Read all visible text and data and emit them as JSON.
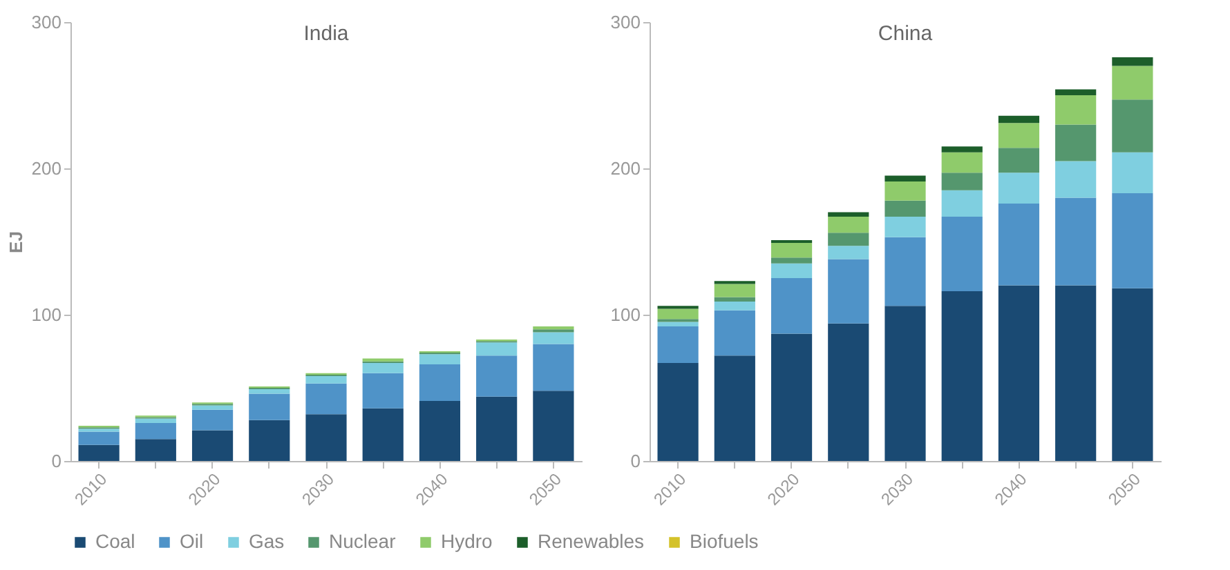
{
  "chart_data": [
    {
      "type": "bar",
      "stacked": true,
      "title": "India",
      "ylabel": "EJ",
      "categories": [
        "2010",
        null,
        "2020",
        null,
        "2030",
        null,
        "2040",
        null,
        "2050"
      ],
      "ylim": [
        0,
        300
      ],
      "yticks": [
        0,
        100,
        200,
        300
      ],
      "grid": false,
      "legend": "bottom",
      "series": [
        {
          "name": "Coal",
          "color": "#1a4a73",
          "values": [
            11,
            15,
            21,
            28,
            32,
            36,
            41,
            44,
            48
          ]
        },
        {
          "name": "Oil",
          "color": "#4f93c8",
          "values": [
            9,
            11,
            14,
            18,
            21,
            24,
            25,
            28,
            32
          ]
        },
        {
          "name": "Gas",
          "color": "#7fcfe0",
          "values": [
            2,
            3,
            3,
            3,
            5,
            7,
            7,
            9,
            8
          ]
        },
        {
          "name": "Nuclear",
          "color": "#55976e",
          "values": [
            1,
            1,
            1,
            1,
            1,
            1,
            1,
            1,
            2
          ]
        },
        {
          "name": "Hydro",
          "color": "#8fcb6b",
          "values": [
            1,
            1,
            1,
            1,
            1,
            2,
            1,
            1,
            2
          ]
        },
        {
          "name": "Renewables",
          "color": "#1c5e2a",
          "values": [
            0,
            0,
            0,
            0,
            0,
            0,
            0,
            0,
            0
          ]
        },
        {
          "name": "Biofuels",
          "color": "#d4c22a",
          "values": [
            null,
            null,
            null,
            null,
            null,
            null,
            null,
            null,
            null
          ]
        }
      ]
    },
    {
      "type": "bar",
      "stacked": true,
      "title": "China",
      "categories": [
        "2010",
        null,
        "2020",
        null,
        "2030",
        null,
        "2040",
        null,
        "2050"
      ],
      "ylim": [
        0,
        300
      ],
      "yticks": [
        0,
        100,
        200,
        300
      ],
      "grid": false,
      "series": [
        {
          "color": "#1a4a73",
          "values": [
            67,
            72,
            87,
            94,
            106,
            116,
            120,
            120,
            118
          ]
        },
        {
          "color": "#4f93c8",
          "values": [
            25,
            31,
            38,
            44,
            47,
            51,
            56,
            60,
            65
          ]
        },
        {
          "color": "#7fcfe0",
          "values": [
            3,
            6,
            10,
            9,
            14,
            18,
            21,
            25,
            28
          ]
        },
        {
          "color": "#55976e",
          "values": [
            2,
            3,
            4,
            9,
            11,
            12,
            17,
            25,
            36
          ]
        },
        {
          "color": "#8fcb6b",
          "values": [
            7,
            9,
            10,
            11,
            13,
            14,
            17,
            20,
            23
          ]
        },
        {
          "color": "#1c5e2a",
          "values": [
            2,
            2,
            2,
            3,
            4,
            4,
            5,
            4,
            6
          ]
        }
      ]
    }
  ]
}
